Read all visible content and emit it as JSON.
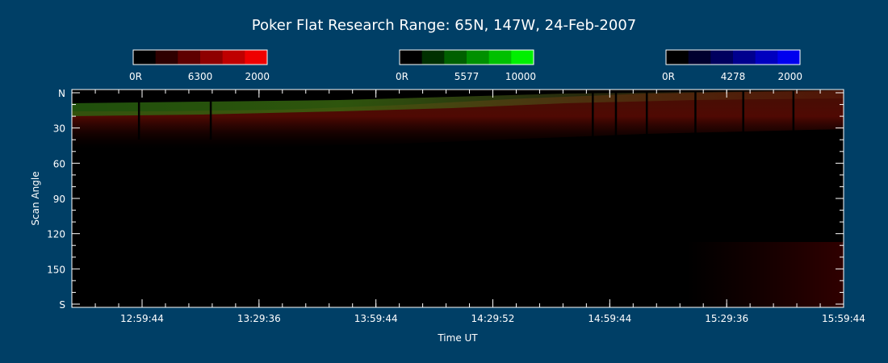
{
  "chart_data": {
    "type": "heatmap",
    "title": "Poker Flat Research Range: 65N, 147W, 24-Feb-2007",
    "xlabel": "Time UT",
    "ylabel": "Scan Angle",
    "x_ticks": [
      "12:59:44",
      "13:29:36",
      "13:59:44",
      "14:29:52",
      "14:59:44",
      "15:29:36",
      "15:59:44"
    ],
    "y_ticks": [
      "N",
      "30",
      "60",
      "90",
      "120",
      "150",
      "S"
    ],
    "ylim": [
      0,
      180
    ],
    "colorbars": [
      {
        "name": "red",
        "min_label": "0R",
        "mid_label": "6300",
        "max_label": "2000",
        "colors": [
          "#000000",
          "#2e0000",
          "#5e0000",
          "#8e0000",
          "#bf0000",
          "#ef0000"
        ]
      },
      {
        "name": "green",
        "min_label": "0R",
        "mid_label": "5577",
        "max_label": "10000",
        "colors": [
          "#000000",
          "#003000",
          "#006000",
          "#009000",
          "#00c000",
          "#00f000"
        ]
      },
      {
        "name": "blue",
        "min_label": "0R",
        "mid_label": "4278",
        "max_label": "2000",
        "colors": [
          "#000000",
          "#00002e",
          "#00005e",
          "#00008e",
          "#0000bf",
          "#0000ef"
        ]
      }
    ],
    "dark_streaks_x_fraction": [
      0.087,
      0.18,
      0.675,
      0.705,
      0.745,
      0.808,
      0.87,
      0.935
    ]
  }
}
